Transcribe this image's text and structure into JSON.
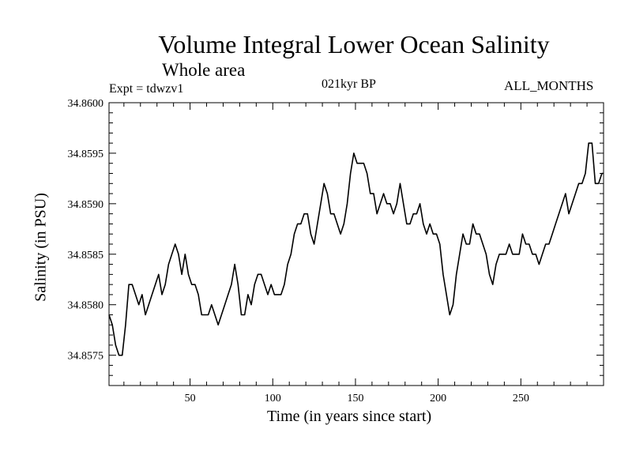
{
  "chart_data": {
    "type": "line",
    "title": "Volume Integral Lower Ocean Salinity",
    "subtitle": "Whole area",
    "annotations": {
      "experiment": "Expt = tdwzv1",
      "period": "021kyr BP",
      "months": "ALL_MONTHS"
    },
    "xlabel": "Time (in years since start)",
    "ylabel": "Salinity (in PSU)",
    "xlim": [
      1,
      300
    ],
    "ylim": [
      34.8572,
      34.86
    ],
    "xticks": [
      50,
      100,
      150,
      200,
      250
    ],
    "yticks": [
      "34.8575",
      "34.8580",
      "34.8585",
      "34.8590",
      "34.8595",
      "34.8600"
    ],
    "series": [
      {
        "name": "Salinity",
        "x": [
          1,
          3,
          5,
          7,
          9,
          11,
          13,
          15,
          17,
          19,
          21,
          23,
          25,
          27,
          29,
          31,
          33,
          35,
          37,
          39,
          41,
          43,
          45,
          47,
          49,
          51,
          53,
          55,
          57,
          59,
          61,
          63,
          65,
          67,
          69,
          71,
          73,
          75,
          77,
          79,
          81,
          83,
          85,
          87,
          89,
          91,
          93,
          95,
          97,
          99,
          101,
          103,
          105,
          107,
          109,
          111,
          113,
          115,
          117,
          119,
          121,
          123,
          125,
          127,
          129,
          131,
          133,
          135,
          137,
          139,
          141,
          143,
          145,
          147,
          149,
          151,
          153,
          155,
          157,
          159,
          161,
          163,
          165,
          167,
          169,
          171,
          173,
          175,
          177,
          179,
          181,
          183,
          185,
          187,
          189,
          191,
          193,
          195,
          197,
          199,
          201,
          203,
          205,
          207,
          209,
          211,
          213,
          215,
          217,
          219,
          221,
          223,
          225,
          227,
          229,
          231,
          233,
          235,
          237,
          239,
          241,
          243,
          245,
          247,
          249,
          251,
          253,
          255,
          257,
          259,
          261,
          263,
          265,
          267,
          269,
          271,
          273,
          275,
          277,
          279,
          281,
          283,
          285,
          287,
          289,
          291,
          293,
          295,
          297,
          299,
          300
        ],
        "values": [
          34.8579,
          34.8578,
          34.8576,
          34.8575,
          34.8575,
          34.8578,
          34.8582,
          34.8582,
          34.8581,
          34.858,
          34.8581,
          34.8579,
          34.858,
          34.8581,
          34.8582,
          34.8583,
          34.8581,
          34.8582,
          34.8584,
          34.8585,
          34.8586,
          34.8585,
          34.8583,
          34.8585,
          34.8583,
          34.8582,
          34.8582,
          34.8581,
          34.8579,
          34.8579,
          34.8579,
          34.858,
          34.8579,
          34.8578,
          34.8579,
          34.858,
          34.8581,
          34.8582,
          34.8584,
          34.8582,
          34.8579,
          34.8579,
          34.8581,
          34.858,
          34.8582,
          34.8583,
          34.8583,
          34.8582,
          34.8581,
          34.8582,
          34.8581,
          34.8581,
          34.8581,
          34.8582,
          34.8584,
          34.8585,
          34.8587,
          34.8588,
          34.8588,
          34.8589,
          34.8589,
          34.8587,
          34.8586,
          34.8588,
          34.859,
          34.8592,
          34.8591,
          34.8589,
          34.8589,
          34.8588,
          34.8587,
          34.8588,
          34.859,
          34.8593,
          34.8595,
          34.8594,
          34.8594,
          34.8594,
          34.8593,
          34.8591,
          34.8591,
          34.8589,
          34.859,
          34.8591,
          34.859,
          34.859,
          34.8589,
          34.859,
          34.8592,
          34.859,
          34.8588,
          34.8588,
          34.8589,
          34.8589,
          34.859,
          34.8588,
          34.8587,
          34.8588,
          34.8587,
          34.8587,
          34.8586,
          34.8583,
          34.8581,
          34.8579,
          34.858,
          34.8583,
          34.8585,
          34.8587,
          34.8586,
          34.8586,
          34.8588,
          34.8587,
          34.8587,
          34.8586,
          34.8585,
          34.8583,
          34.8582,
          34.8584,
          34.8585,
          34.8585,
          34.8585,
          34.8586,
          34.8585,
          34.8585,
          34.8585,
          34.8587,
          34.8586,
          34.8586,
          34.8585,
          34.8585,
          34.8584,
          34.8585,
          34.8586,
          34.8586,
          34.8587,
          34.8588,
          34.8589,
          34.859,
          34.8591,
          34.8589,
          34.859,
          34.8591,
          34.8592,
          34.8592,
          34.8593,
          34.8596,
          34.8596,
          34.8592,
          34.8592,
          34.8593,
          34.8593
        ]
      }
    ]
  }
}
